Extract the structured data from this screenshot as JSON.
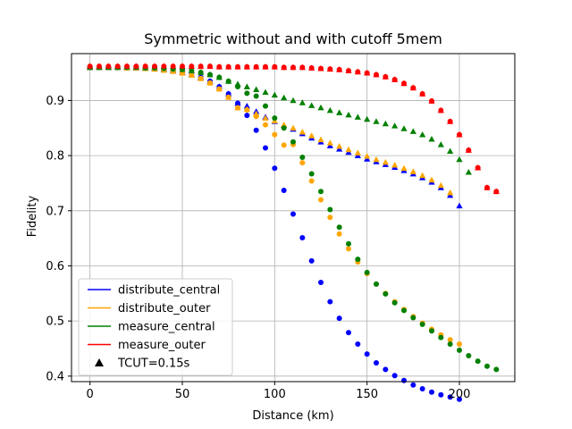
{
  "chart_data": {
    "type": "scatter",
    "title": "Symmetric without and with cutoff 5mem",
    "xlabel": "Distance (km)",
    "ylabel": "Fidelity",
    "xlim": [
      -10,
      230
    ],
    "ylim": [
      0.39,
      0.985
    ],
    "xticks": [
      0,
      50,
      100,
      150,
      200
    ],
    "yticks": [
      0.4,
      0.5,
      0.6,
      0.7,
      0.8,
      0.9
    ],
    "grid": true,
    "legend_position": "lower-left",
    "legend": [
      {
        "label": "distribute_central",
        "color": "#0000ff",
        "kind": "line"
      },
      {
        "label": "distribute_outer",
        "color": "#ffa500",
        "kind": "line"
      },
      {
        "label": "measure_central",
        "color": "#008000",
        "kind": "line"
      },
      {
        "label": "measure_outer",
        "color": "#ff0000",
        "kind": "line"
      },
      {
        "label": "TCUT=0.15s",
        "color": "#000000",
        "kind": "triangle"
      }
    ],
    "series": [
      {
        "name": "distribute_central",
        "color": "#0000ff",
        "marker": "circle",
        "x": [
          0,
          5,
          10,
          15,
          20,
          25,
          30,
          35,
          40,
          45,
          50,
          55,
          60,
          65,
          70,
          75,
          80,
          85,
          90,
          95,
          100,
          105,
          110,
          115,
          120,
          125,
          130,
          135,
          140,
          145,
          150,
          155,
          160,
          165,
          170,
          175,
          180,
          185,
          190,
          195,
          200
        ],
        "y": [
          0.96,
          0.96,
          0.96,
          0.96,
          0.96,
          0.959,
          0.959,
          0.958,
          0.956,
          0.954,
          0.951,
          0.947,
          0.942,
          0.935,
          0.925,
          0.912,
          0.895,
          0.873,
          0.846,
          0.814,
          0.777,
          0.737,
          0.694,
          0.651,
          0.609,
          0.57,
          0.535,
          0.505,
          0.479,
          0.458,
          0.44,
          0.424,
          0.412,
          0.401,
          0.392,
          0.384,
          0.377,
          0.371,
          0.366,
          0.362,
          0.358
        ]
      },
      {
        "name": "distribute_outer",
        "color": "#ffa500",
        "marker": "circle",
        "x": [
          0,
          5,
          10,
          15,
          20,
          25,
          30,
          35,
          40,
          45,
          50,
          55,
          60,
          65,
          70,
          75,
          80,
          85,
          90,
          95,
          100,
          105,
          110,
          115,
          120,
          125,
          130,
          135,
          140,
          145,
          150,
          155,
          160,
          165,
          170,
          175,
          180,
          185,
          190,
          195,
          200
        ],
        "y": [
          0.96,
          0.96,
          0.96,
          0.96,
          0.959,
          0.959,
          0.958,
          0.957,
          0.955,
          0.953,
          0.95,
          0.946,
          0.94,
          0.932,
          0.921,
          0.906,
          0.887,
          0.883,
          0.871,
          0.856,
          0.838,
          0.819,
          0.82,
          0.787,
          0.754,
          0.72,
          0.688,
          0.658,
          0.631,
          0.607,
          0.586,
          0.567,
          0.55,
          0.535,
          0.521,
          0.508,
          0.496,
          0.485,
          0.475,
          0.466,
          0.458
        ]
      },
      {
        "name": "measure_central",
        "color": "#008000",
        "marker": "circle",
        "x": [
          0,
          5,
          10,
          15,
          20,
          25,
          30,
          35,
          40,
          45,
          50,
          55,
          60,
          65,
          70,
          75,
          80,
          85,
          90,
          95,
          100,
          105,
          110,
          115,
          120,
          125,
          130,
          135,
          140,
          145,
          150,
          155,
          160,
          165,
          170,
          175,
          180,
          185,
          190,
          195,
          200,
          205,
          210,
          215,
          220
        ],
        "y": [
          0.96,
          0.96,
          0.96,
          0.96,
          0.96,
          0.96,
          0.959,
          0.959,
          0.958,
          0.957,
          0.956,
          0.954,
          0.951,
          0.947,
          0.942,
          0.935,
          0.925,
          0.913,
          0.908,
          0.89,
          0.868,
          0.85,
          0.825,
          0.797,
          0.767,
          0.735,
          0.702,
          0.67,
          0.64,
          0.612,
          0.588,
          0.567,
          0.549,
          0.533,
          0.519,
          0.506,
          0.494,
          0.482,
          0.47,
          0.458,
          0.447,
          0.437,
          0.427,
          0.418,
          0.412
        ]
      },
      {
        "name": "measure_outer",
        "color": "#ff0000",
        "marker": "circle",
        "x": [
          0,
          5,
          10,
          15,
          20,
          25,
          30,
          35,
          40,
          45,
          50,
          55,
          60,
          65,
          70,
          75,
          80,
          85,
          90,
          95,
          100,
          105,
          110,
          115,
          120,
          125,
          130,
          135,
          140,
          145,
          150,
          155,
          160,
          165,
          170,
          175,
          180,
          185,
          190,
          195,
          200,
          205,
          210,
          215,
          220
        ],
        "y": [
          0.962,
          0.962,
          0.962,
          0.962,
          0.962,
          0.962,
          0.962,
          0.962,
          0.962,
          0.962,
          0.962,
          0.962,
          0.962,
          0.962,
          0.961,
          0.961,
          0.961,
          0.961,
          0.961,
          0.961,
          0.961,
          0.96,
          0.96,
          0.96,
          0.959,
          0.958,
          0.957,
          0.956,
          0.954,
          0.952,
          0.95,
          0.947,
          0.943,
          0.938,
          0.931,
          0.923,
          0.912,
          0.899,
          0.882,
          0.862,
          0.838,
          0.81,
          0.778,
          0.742,
          0.735
        ]
      },
      {
        "name": "distribute_central TCUT=0.15s",
        "color": "#0000ff",
        "marker": "triangle",
        "x": [
          0,
          5,
          10,
          15,
          20,
          25,
          30,
          35,
          40,
          45,
          50,
          55,
          60,
          65,
          70,
          75,
          80,
          85,
          90,
          95,
          100,
          105,
          110,
          115,
          120,
          125,
          130,
          135,
          140,
          145,
          150,
          155,
          160,
          165,
          170,
          175,
          180,
          185,
          190,
          195,
          200
        ],
        "y": [
          0.96,
          0.96,
          0.96,
          0.96,
          0.96,
          0.959,
          0.959,
          0.958,
          0.956,
          0.954,
          0.951,
          0.947,
          0.942,
          0.935,
          0.925,
          0.912,
          0.895,
          0.89,
          0.88,
          0.87,
          0.862,
          0.855,
          0.848,
          0.84,
          0.832,
          0.825,
          0.818,
          0.812,
          0.806,
          0.8,
          0.794,
          0.789,
          0.784,
          0.779,
          0.773,
          0.767,
          0.76,
          0.752,
          0.742,
          0.728,
          0.709
        ]
      },
      {
        "name": "distribute_outer TCUT=0.15s",
        "color": "#ffa500",
        "marker": "triangle",
        "x": [
          0,
          5,
          10,
          15,
          20,
          25,
          30,
          35,
          40,
          45,
          50,
          55,
          60,
          65,
          70,
          75,
          80,
          85,
          90,
          95,
          100,
          105,
          110,
          115,
          120,
          125,
          130,
          135,
          140,
          145,
          150,
          155,
          160,
          165,
          170,
          175,
          180,
          185,
          190,
          195
        ],
        "y": [
          0.96,
          0.96,
          0.96,
          0.96,
          0.959,
          0.959,
          0.958,
          0.957,
          0.955,
          0.953,
          0.95,
          0.946,
          0.94,
          0.932,
          0.921,
          0.906,
          0.887,
          0.884,
          0.876,
          0.868,
          0.863,
          0.856,
          0.85,
          0.843,
          0.836,
          0.829,
          0.823,
          0.817,
          0.811,
          0.805,
          0.799,
          0.793,
          0.788,
          0.783,
          0.777,
          0.771,
          0.764,
          0.756,
          0.746,
          0.733
        ]
      },
      {
        "name": "measure_central TCUT=0.15s",
        "color": "#008000",
        "marker": "triangle",
        "x": [
          0,
          5,
          10,
          15,
          20,
          25,
          30,
          35,
          40,
          45,
          50,
          55,
          60,
          65,
          70,
          75,
          80,
          85,
          90,
          95,
          100,
          105,
          110,
          115,
          120,
          125,
          130,
          135,
          140,
          145,
          150,
          155,
          160,
          165,
          170,
          175,
          180,
          185,
          190,
          195,
          200,
          205
        ],
        "y": [
          0.96,
          0.96,
          0.96,
          0.96,
          0.96,
          0.96,
          0.959,
          0.959,
          0.958,
          0.957,
          0.956,
          0.954,
          0.951,
          0.947,
          0.942,
          0.935,
          0.93,
          0.925,
          0.92,
          0.915,
          0.91,
          0.905,
          0.9,
          0.896,
          0.891,
          0.887,
          0.882,
          0.878,
          0.874,
          0.87,
          0.866,
          0.862,
          0.858,
          0.854,
          0.849,
          0.844,
          0.838,
          0.83,
          0.82,
          0.808,
          0.793,
          0.77
        ]
      },
      {
        "name": "measure_outer TCUT=0.15s",
        "color": "#ff0000",
        "marker": "triangle",
        "x": [
          0,
          5,
          10,
          15,
          20,
          25,
          30,
          35,
          40,
          45,
          50,
          55,
          60,
          65,
          70,
          75,
          80,
          85,
          90,
          95,
          100,
          105,
          110,
          115,
          120,
          125,
          130,
          135,
          140,
          145,
          150,
          155,
          160,
          165,
          170,
          175,
          180,
          185,
          190,
          195,
          200,
          205,
          210,
          215,
          220
        ],
        "y": [
          0.962,
          0.962,
          0.962,
          0.962,
          0.962,
          0.962,
          0.962,
          0.962,
          0.962,
          0.962,
          0.962,
          0.962,
          0.962,
          0.962,
          0.961,
          0.961,
          0.961,
          0.961,
          0.961,
          0.961,
          0.961,
          0.96,
          0.96,
          0.96,
          0.959,
          0.958,
          0.957,
          0.956,
          0.954,
          0.952,
          0.95,
          0.947,
          0.943,
          0.938,
          0.931,
          0.923,
          0.912,
          0.899,
          0.882,
          0.862,
          0.838,
          0.81,
          0.778,
          0.742,
          0.735
        ]
      }
    ]
  }
}
